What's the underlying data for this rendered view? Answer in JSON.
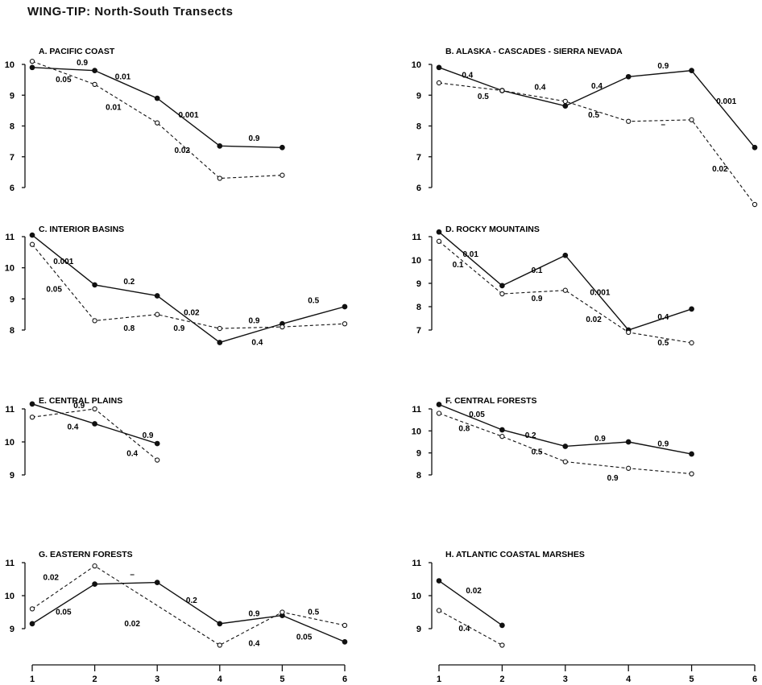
{
  "page": {
    "title": "WING-TIP: North-South Transects"
  },
  "chart_data": [
    {
      "id": "A",
      "type": "line",
      "title": "A. PACIFIC COAST",
      "x": [
        1,
        2,
        3,
        4,
        5,
        6
      ],
      "ylim": [
        6,
        10
      ],
      "yticks": [
        6,
        7,
        8,
        9,
        10
      ],
      "series": [
        {
          "style": "solid-filled",
          "values": [
            9.9,
            9.8,
            8.9,
            7.35,
            7.3,
            null
          ]
        },
        {
          "style": "dashed-open",
          "values": [
            10.1,
            9.35,
            8.1,
            6.3,
            6.4,
            null
          ]
        }
      ],
      "labels": [
        {
          "text": "0.9",
          "x": 1.8,
          "y": 10.05
        },
        {
          "text": "0.01",
          "x": 2.45,
          "y": 9.6
        },
        {
          "text": "0.001",
          "x": 3.5,
          "y": 8.35
        },
        {
          "text": "0.9",
          "x": 4.55,
          "y": 7.6
        },
        {
          "text": "0.05",
          "x": 1.5,
          "y": 9.5
        },
        {
          "text": "0.01",
          "x": 2.3,
          "y": 8.6
        },
        {
          "text": "0.02",
          "x": 3.4,
          "y": 7.2
        }
      ]
    },
    {
      "id": "B",
      "type": "line",
      "title": "B. ALASKA - CASCADES - SIERRA NEVADA",
      "x": [
        1,
        2,
        3,
        4,
        5,
        6
      ],
      "ylim": [
        6,
        10
      ],
      "yticks": [
        6,
        7,
        8,
        9,
        10
      ],
      "series": [
        {
          "style": "solid-filled",
          "values": [
            9.9,
            9.15,
            8.65,
            9.6,
            9.8,
            7.3
          ]
        },
        {
          "style": "dashed-open",
          "values": [
            9.4,
            9.15,
            8.8,
            8.15,
            8.2,
            5.45
          ]
        }
      ],
      "labels": [
        {
          "text": "0.4",
          "x": 1.45,
          "y": 9.65
        },
        {
          "text": "0.4",
          "x": 2.6,
          "y": 9.25
        },
        {
          "text": "0.4",
          "x": 3.5,
          "y": 9.3
        },
        {
          "text": "0.9",
          "x": 4.55,
          "y": 9.95
        },
        {
          "text": "0.001",
          "x": 5.55,
          "y": 8.8
        },
        {
          "text": "0.5",
          "x": 1.7,
          "y": 8.95
        },
        {
          "text": "0.5",
          "x": 3.45,
          "y": 8.35
        },
        {
          "text": "–",
          "x": 4.55,
          "y": 8.05
        },
        {
          "text": "0.02",
          "x": 5.45,
          "y": 6.6
        }
      ]
    },
    {
      "id": "C",
      "type": "line",
      "title": "C. INTERIOR BASINS",
      "x": [
        1,
        2,
        3,
        4,
        5,
        6
      ],
      "ylim": [
        8,
        11
      ],
      "yticks": [
        8,
        9,
        10,
        11
      ],
      "series": [
        {
          "style": "solid-filled",
          "values": [
            11.05,
            9.45,
            9.1,
            7.6,
            8.2,
            8.75
          ]
        },
        {
          "style": "dashed-open",
          "values": [
            10.75,
            8.3,
            8.5,
            8.05,
            8.1,
            8.2
          ]
        }
      ],
      "labels": [
        {
          "text": "0.001",
          "x": 1.5,
          "y": 10.2
        },
        {
          "text": "0.2",
          "x": 2.55,
          "y": 9.55
        },
        {
          "text": "0.02",
          "x": 3.55,
          "y": 8.55
        },
        {
          "text": "0.9",
          "x": 4.55,
          "y": 8.3
        },
        {
          "text": "0.5",
          "x": 5.5,
          "y": 8.95
        },
        {
          "text": "0.05",
          "x": 1.35,
          "y": 9.3
        },
        {
          "text": "0.8",
          "x": 2.55,
          "y": 8.05
        },
        {
          "text": "0.9",
          "x": 3.35,
          "y": 8.05
        },
        {
          "text": "0.4",
          "x": 4.6,
          "y": 7.6
        }
      ]
    },
    {
      "id": "D",
      "type": "line",
      "title": "D. ROCKY MOUNTAINS",
      "x": [
        1,
        2,
        3,
        4,
        5,
        6
      ],
      "ylim": [
        7,
        11
      ],
      "yticks": [
        7,
        8,
        9,
        10,
        11
      ],
      "series": [
        {
          "style": "solid-filled",
          "values": [
            11.2,
            8.9,
            10.2,
            7.0,
            7.9,
            null
          ]
        },
        {
          "style": "dashed-open",
          "values": [
            10.8,
            8.55,
            8.7,
            6.9,
            6.45,
            null
          ]
        }
      ],
      "labels": [
        {
          "text": "0.01",
          "x": 1.5,
          "y": 10.25
        },
        {
          "text": "0.1",
          "x": 2.55,
          "y": 9.55
        },
        {
          "text": "0.001",
          "x": 3.55,
          "y": 8.6
        },
        {
          "text": "0.4",
          "x": 4.55,
          "y": 7.55
        },
        {
          "text": "0.1",
          "x": 1.3,
          "y": 9.8
        },
        {
          "text": "0.9",
          "x": 2.55,
          "y": 8.35
        },
        {
          "text": "0.02",
          "x": 3.45,
          "y": 7.45
        },
        {
          "text": "0.5",
          "x": 4.55,
          "y": 6.45
        }
      ]
    },
    {
      "id": "E",
      "type": "line",
      "title": "E. CENTRAL PLAINS",
      "x": [
        1,
        2,
        3,
        4,
        5,
        6
      ],
      "ylim": [
        9,
        11
      ],
      "yticks": [
        9,
        10,
        11
      ],
      "series": [
        {
          "style": "solid-filled",
          "values": [
            11.15,
            10.55,
            9.95,
            null,
            null,
            null
          ]
        },
        {
          "style": "dashed-open",
          "values": [
            10.75,
            11.0,
            9.45,
            null,
            null,
            null
          ]
        }
      ],
      "labels": [
        {
          "text": "0.9",
          "x": 1.75,
          "y": 11.1
        },
        {
          "text": "0.4",
          "x": 1.65,
          "y": 10.45
        },
        {
          "text": "0.9",
          "x": 2.85,
          "y": 10.2
        },
        {
          "text": "0.4",
          "x": 2.6,
          "y": 9.65
        }
      ]
    },
    {
      "id": "F",
      "type": "line",
      "title": "F. CENTRAL FORESTS",
      "x": [
        1,
        2,
        3,
        4,
        5,
        6
      ],
      "ylim": [
        8,
        11
      ],
      "yticks": [
        8,
        9,
        10,
        11
      ],
      "series": [
        {
          "style": "solid-filled",
          "values": [
            11.2,
            10.05,
            9.3,
            9.5,
            8.95,
            null
          ]
        },
        {
          "style": "dashed-open",
          "values": [
            10.8,
            9.75,
            8.6,
            8.3,
            8.05,
            null
          ]
        }
      ],
      "labels": [
        {
          "text": "0.05",
          "x": 1.6,
          "y": 10.75
        },
        {
          "text": "0.2",
          "x": 2.45,
          "y": 9.8
        },
        {
          "text": "0.9",
          "x": 3.55,
          "y": 9.65
        },
        {
          "text": "0.9",
          "x": 4.55,
          "y": 9.4
        },
        {
          "text": "0.8",
          "x": 1.4,
          "y": 10.1
        },
        {
          "text": "0.5",
          "x": 2.55,
          "y": 9.05
        },
        {
          "text": "0.9",
          "x": 3.75,
          "y": 7.85
        }
      ]
    },
    {
      "id": "G",
      "type": "line",
      "title": "G. EASTERN FORESTS",
      "x": [
        1,
        2,
        3,
        4,
        5,
        6
      ],
      "ylim": [
        9,
        11
      ],
      "yticks": [
        9,
        10,
        11
      ],
      "series": [
        {
          "style": "solid-filled",
          "values": [
            9.15,
            10.35,
            10.4,
            9.15,
            9.4,
            8.6
          ]
        },
        {
          "style": "dashed-open",
          "values": [
            9.6,
            10.9,
            null,
            8.5,
            9.5,
            9.1
          ]
        }
      ],
      "labels": [
        {
          "text": "0.02",
          "x": 1.3,
          "y": 10.55
        },
        {
          "text": "–",
          "x": 2.6,
          "y": 10.65
        },
        {
          "text": "0.2",
          "x": 3.55,
          "y": 9.85
        },
        {
          "text": "0.9",
          "x": 4.55,
          "y": 9.45
        },
        {
          "text": "0.5",
          "x": 5.5,
          "y": 9.5
        },
        {
          "text": "0.05",
          "x": 1.5,
          "y": 9.5
        },
        {
          "text": "0.02",
          "x": 2.6,
          "y": 9.15
        },
        {
          "text": "0.4",
          "x": 4.55,
          "y": 8.55
        },
        {
          "text": "0.05",
          "x": 5.35,
          "y": 8.75
        }
      ]
    },
    {
      "id": "H",
      "type": "line",
      "title": "H. ATLANTIC COASTAL MARSHES",
      "x": [
        1,
        2,
        3,
        4,
        5,
        6
      ],
      "ylim": [
        9,
        11
      ],
      "yticks": [
        9,
        10,
        11
      ],
      "series": [
        {
          "style": "solid-filled",
          "values": [
            10.45,
            9.1,
            null,
            null,
            null,
            null
          ]
        },
        {
          "style": "dashed-open",
          "values": [
            9.55,
            8.5,
            null,
            null,
            null,
            null
          ]
        }
      ],
      "labels": [
        {
          "text": "0.02",
          "x": 1.55,
          "y": 10.15
        },
        {
          "text": "0.4",
          "x": 1.4,
          "y": 9.0
        }
      ]
    }
  ],
  "x_axis": {
    "ticks": [
      1,
      2,
      3,
      4,
      5,
      6
    ]
  }
}
